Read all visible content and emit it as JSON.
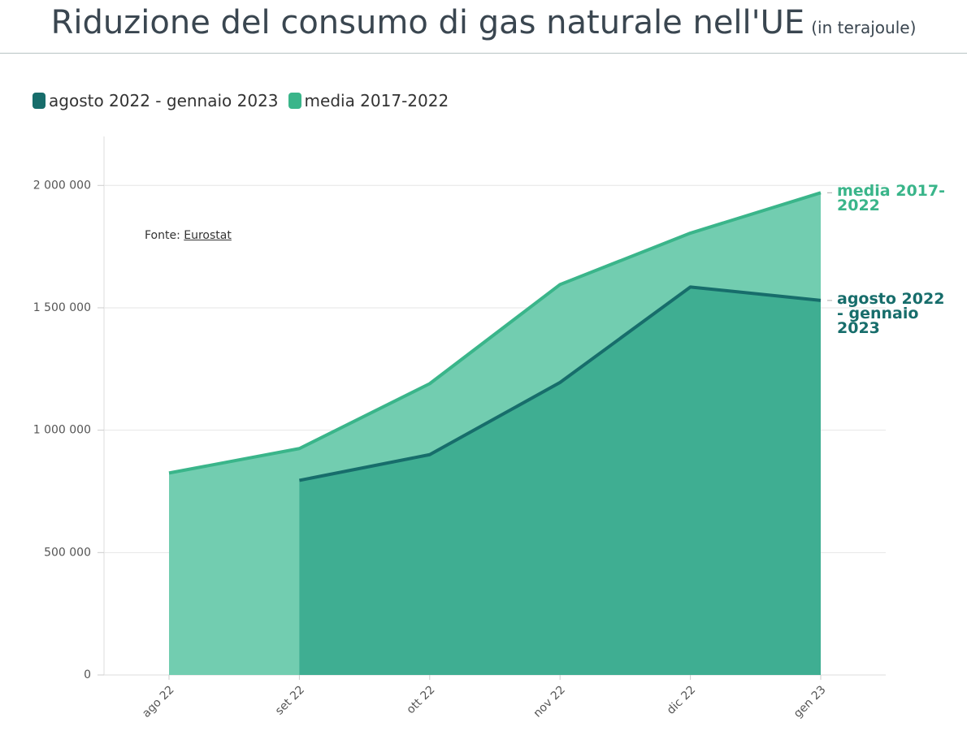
{
  "chart_data": {
    "type": "area",
    "title": "Riduzione del consumo di gas naturale nell'UE",
    "subtitle": "(in terajoule)",
    "source": "Fonte:",
    "source_link": "Eurostat",
    "categories": [
      "ago 22",
      "set 22",
      "ott 22",
      "nov 22",
      "dic 22",
      "gen 23"
    ],
    "series": [
      {
        "name": "media 2017-2022",
        "color": "#3ab58a",
        "fill": "#72cdb0",
        "values": [
          825000,
          925000,
          1190000,
          1595000,
          1805000,
          1970000
        ]
      },
      {
        "name": "agosto 2022 - gennaio 2023",
        "color": "#176d6b",
        "fill": "#3fae92",
        "values": [
          null,
          795000,
          900000,
          1195000,
          1585000,
          1530000
        ]
      }
    ],
    "ylim": [
      0,
      2200000
    ],
    "yticks": [
      0,
      {
        "value": 500000,
        "label": "500 000"
      },
      {
        "value": 1000000,
        "label": "1 000 000"
      },
      {
        "value": 1500000,
        "label": "1 500 000"
      },
      {
        "value": 2000000,
        "label": "2 000 000"
      }
    ],
    "grid": true
  }
}
